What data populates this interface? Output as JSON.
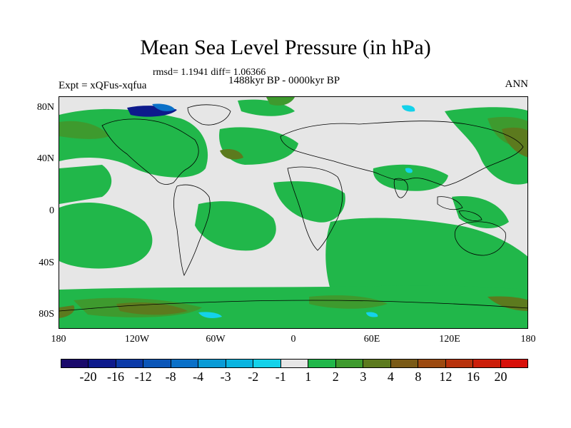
{
  "title": "Mean Sea Level Pressure (in hPa)",
  "stats": "rmsd= 1.1941 diff= 1.06366",
  "period": "1488kyr BP - 0000kyr BP",
  "experiment": "Expt = xQFus-xqfua",
  "season": "ANN",
  "y_axis_labels": [
    "80N",
    "40N",
    "0",
    "40S",
    "80S"
  ],
  "x_axis_labels": [
    "180",
    "120W",
    "60W",
    "0",
    "60E",
    "120E",
    "180"
  ],
  "colorbar": {
    "colors": [
      "#1a0a6b",
      "#0d1a8c",
      "#0b3aa8",
      "#0b56b8",
      "#0a70c8",
      "#0a9bd6",
      "#0ab4e0",
      "#14d2ea",
      "#e6e6e6",
      "#21b74a",
      "#3e9a2e",
      "#5c7a1e",
      "#7a5a16",
      "#9c4a10",
      "#b8320c",
      "#cc1e0a",
      "#d8100a"
    ],
    "labels": [
      "-20",
      "-16",
      "-12",
      "-8",
      "-4",
      "-3",
      "-2",
      "-1",
      "1",
      "2",
      "3",
      "4",
      "8",
      "12",
      "16",
      "20"
    ]
  },
  "map_colors": {
    "neutral": "#e6e6e6",
    "positive_1_2": "#21b74a",
    "positive_2_3": "#3e9a2e",
    "positive_3_4": "#5c7a1e",
    "negative_dark": "#0d1a8c",
    "negative_light": "#14d2ea"
  }
}
